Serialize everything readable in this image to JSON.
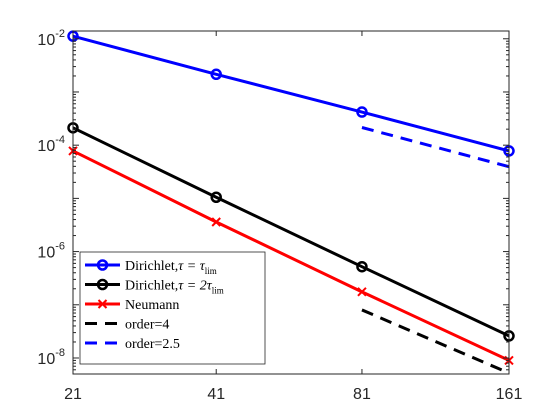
{
  "chart_data": {
    "type": "line",
    "x_scale": "log",
    "y_scale": "log",
    "x_ticks": [
      21,
      41,
      81,
      161
    ],
    "x_tick_labels": [
      "21",
      "41",
      "81",
      "161"
    ],
    "xlim": [
      21,
      161
    ],
    "ylim": [
      5e-09,
      0.014
    ],
    "y_ticks": [
      {
        "value": 1e-08,
        "base": "10",
        "exp": "-8"
      },
      {
        "value": 1e-06,
        "base": "10",
        "exp": "-6"
      },
      {
        "value": 0.0001,
        "base": "10",
        "exp": "-4"
      },
      {
        "value": 0.01,
        "base": "10",
        "exp": "-2"
      }
    ],
    "grid": false,
    "legend_position": "bottom-left",
    "series": [
      {
        "name": "Dirichlet,τ = τlim",
        "legend": {
          "pre": "Dirichlet,",
          "tau": "τ = τ",
          "sub": "lim"
        },
        "color": "#0000ff",
        "marker": "circle",
        "x": [
          21,
          41,
          81,
          161
        ],
        "y": [
          0.0112,
          0.00215,
          0.00042,
          7.8e-05
        ]
      },
      {
        "name": "Dirichlet,τ = 2τlim",
        "legend": {
          "pre": "Dirichlet,",
          "tau": "τ = 2τ",
          "sub": "lim"
        },
        "color": "#000000",
        "marker": "circle",
        "x": [
          21,
          41,
          81,
          161
        ],
        "y": [
          0.000212,
          1.05e-05,
          5.2e-07,
          2.6e-08
        ]
      },
      {
        "name": "Neumann",
        "legend": {
          "pre": "Neumann",
          "tau": "",
          "sub": ""
        },
        "color": "#ff0000",
        "marker": "x",
        "x": [
          21,
          41,
          81,
          161
        ],
        "y": [
          7.8e-05,
          3.6e-06,
          1.75e-07,
          9e-09
        ]
      },
      {
        "name": "order=4",
        "legend": {
          "pre": "order=4",
          "tau": "",
          "sub": ""
        },
        "color": "#000000",
        "marker": "none",
        "dash": true,
        "x": [
          81,
          161
        ],
        "y": [
          8e-08,
          5.2e-09
        ]
      },
      {
        "name": "order=2.5",
        "legend": {
          "pre": "order=2.5",
          "tau": "",
          "sub": ""
        },
        "color": "#0000ff",
        "marker": "none",
        "dash": true,
        "x": [
          81,
          161
        ],
        "y": [
          0.000215,
          3.94e-05
        ]
      }
    ]
  }
}
